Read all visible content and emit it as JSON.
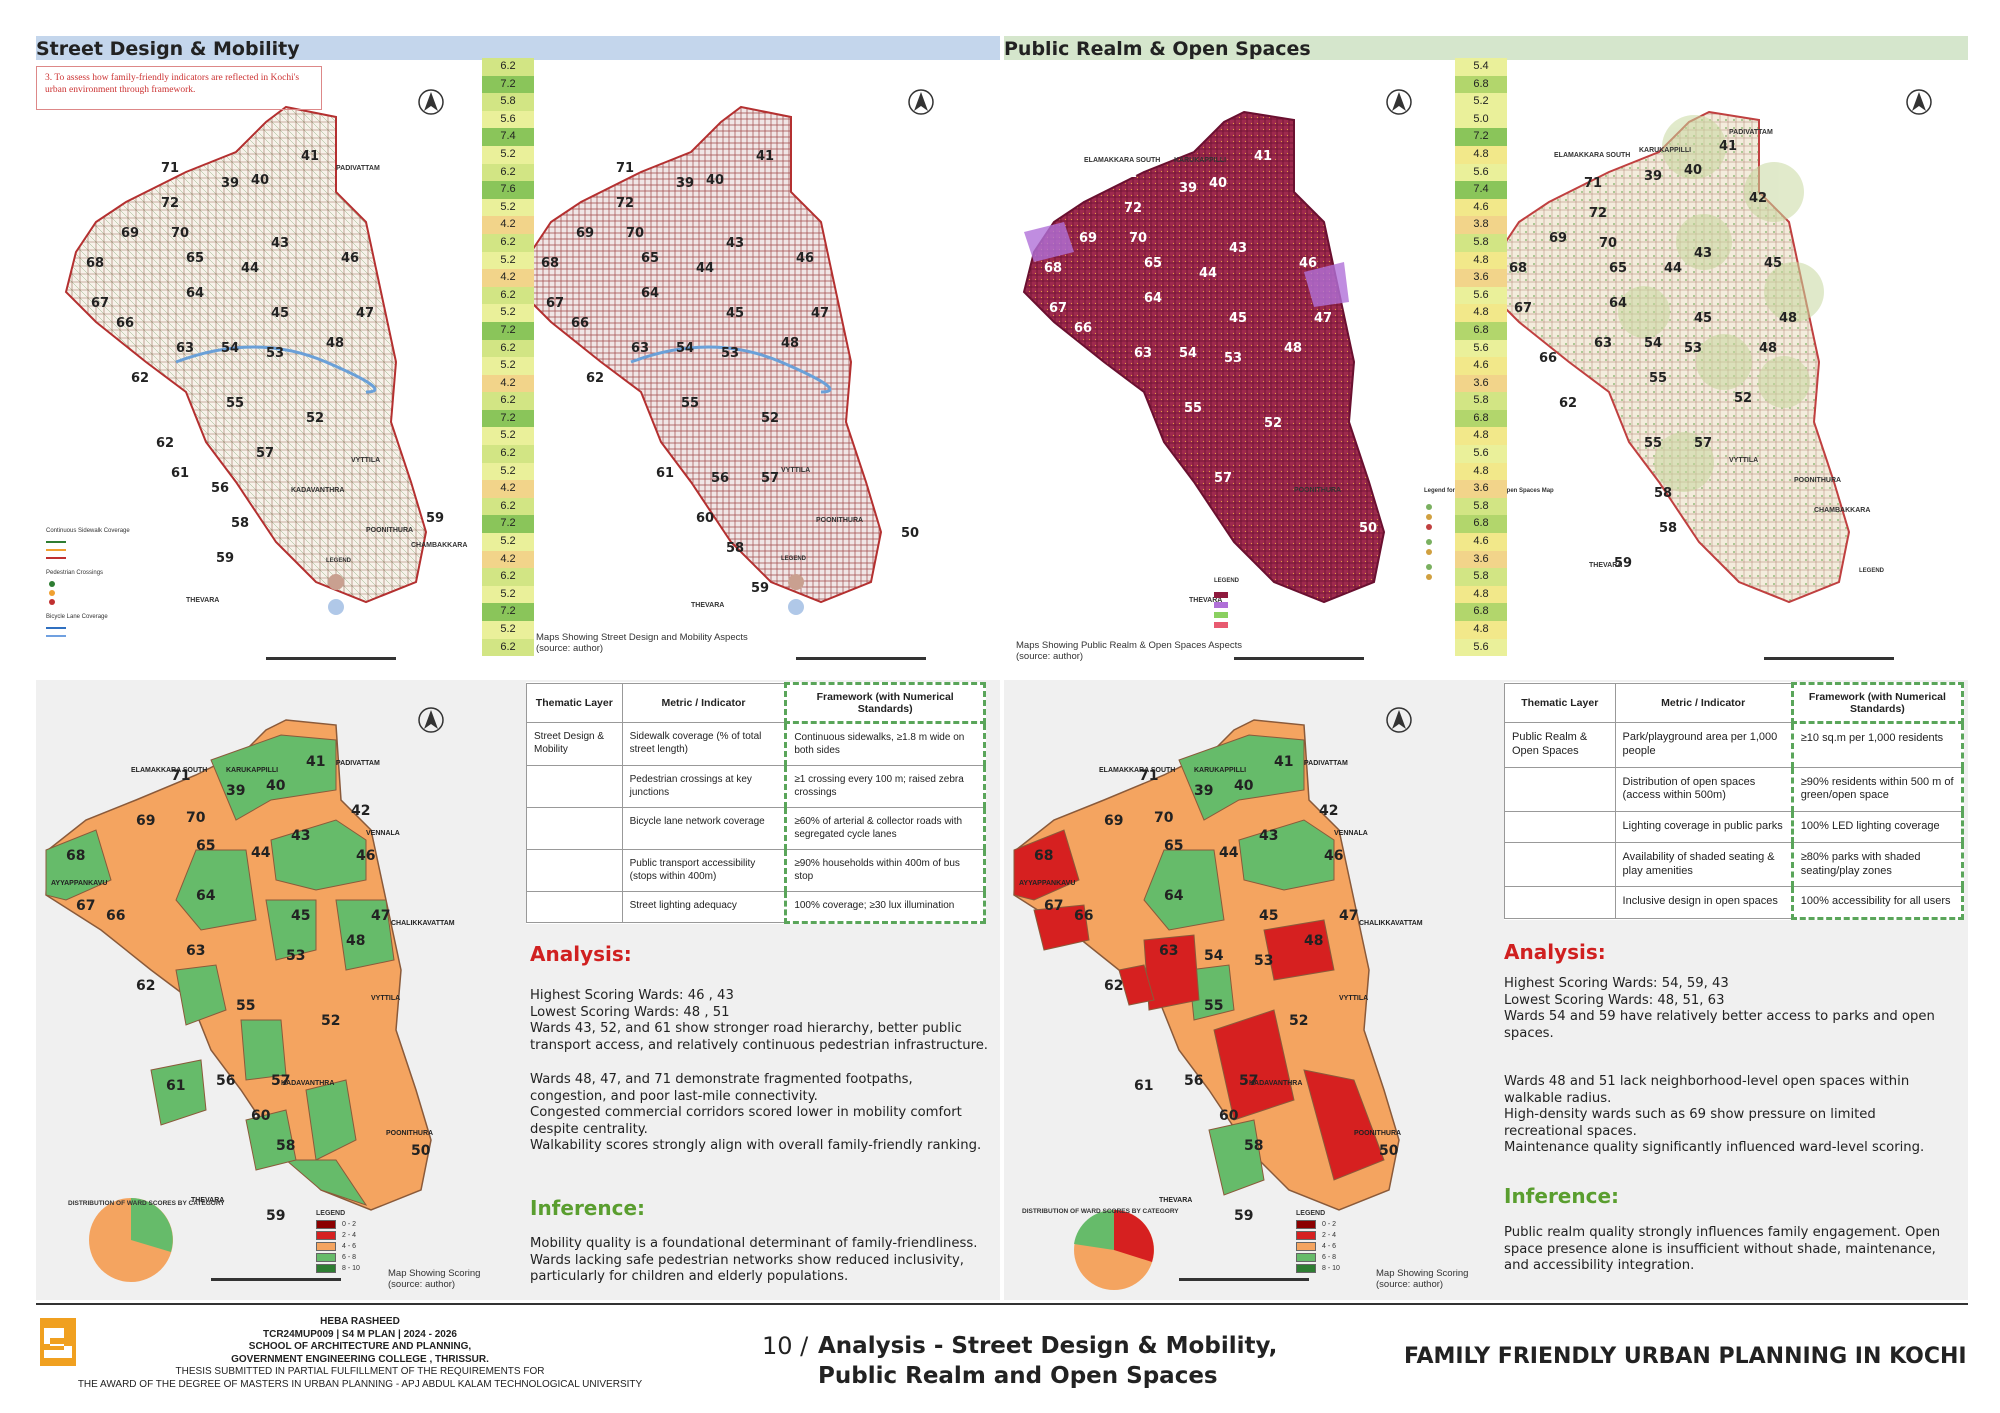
{
  "sections": {
    "street": "Street Design & Mobility",
    "public": "Public Realm & Open Spaces"
  },
  "objective": "3. To assess how family-friendly indicators are reflected in Kochi's urban environment  through framework.",
  "street_scores": [
    "6.2",
    "7.2",
    "5.8",
    "5.6",
    "7.4",
    "5.2",
    "6.2",
    "7.6",
    "5.2",
    "4.2",
    "6.2",
    "5.2",
    "4.2",
    "6.2",
    "5.2",
    "7.2",
    "6.2",
    "5.2",
    "4.2",
    "6.2",
    "7.2",
    "5.2",
    "6.2",
    "5.2",
    "4.2",
    "6.2",
    "7.2",
    "5.2",
    "4.2",
    "6.2",
    "5.2",
    "7.2",
    "5.2",
    "6.2"
  ],
  "public_scores": [
    "5.4",
    "6.8",
    "5.2",
    "5.0",
    "7.2",
    "4.8",
    "5.6",
    "7.4",
    "4.6",
    "3.8",
    "5.8",
    "4.8",
    "3.6",
    "5.6",
    "4.8",
    "6.8",
    "5.6",
    "4.6",
    "3.6",
    "5.8",
    "6.8",
    "4.8",
    "5.6",
    "4.8",
    "3.6",
    "5.8",
    "6.8",
    "4.6",
    "3.6",
    "5.8",
    "4.8",
    "6.8",
    "4.8",
    "5.6"
  ],
  "captions": {
    "street_maps": "Maps Showing Street Design and Mobility Aspects",
    "public_maps": "Maps Showing Public Realm & Open Spaces Aspects",
    "source": "(source: author)",
    "scoring": "Map Showing Scoring"
  },
  "ward_labels": [
    "41",
    "PADIVATTAM",
    "71",
    "39",
    "40",
    "72",
    "69",
    "70",
    "43",
    "65",
    "44",
    "46",
    "68",
    "67",
    "64",
    "45",
    "47",
    "66",
    "48",
    "63",
    "54",
    "53",
    "62",
    "55",
    "52",
    "VYTTILA",
    "61",
    "56",
    "57",
    "60",
    "58",
    "59",
    "50",
    "THEVARA",
    "POONITHURA",
    "ELAMAKKARA SOUTH",
    "KARUKAPPILLI",
    "AYYAPPANKAVU",
    "VENNALA",
    "CHALIKKAVATTAM",
    "POONITHURA",
    "KADAVANTHRA",
    "CHAMBAKKARA"
  ],
  "legend_title": "LEGEND",
  "score_legend": [
    {
      "range": "0 - 2",
      "color": "#8b0000"
    },
    {
      "range": "2 - 4",
      "color": "#d62020"
    },
    {
      "range": "4 - 6",
      "color": "#f4a460"
    },
    {
      "range": "6 - 8",
      "color": "#66bb6a"
    },
    {
      "range": "8 - 10",
      "color": "#2e7d32"
    }
  ],
  "pie_title": "DISTRIBUTION OF WARD SCORES BY CATEGORY",
  "street_table": {
    "headers": [
      "Thematic Layer",
      "Metric / Indicator",
      "Framework (with Numerical Standards)"
    ],
    "rows": [
      [
        "Street Design & Mobility",
        "Sidewalk coverage (% of total street length)",
        "Continuous sidewalks, ≥1.8 m wide on both sides"
      ],
      [
        "",
        "Pedestrian crossings at key junctions",
        "≥1 crossing every 100 m; raised zebra crossings"
      ],
      [
        "",
        "Bicycle lane network coverage",
        "≥60% of arterial & collector roads with segregated cycle lanes"
      ],
      [
        "",
        "Public transport accessibility (stops within 400m)",
        "≥90% households within 400m of bus stop"
      ],
      [
        "",
        "Street lighting adequacy",
        "100% coverage; ≥30 lux illumination"
      ]
    ]
  },
  "public_table": {
    "headers": [
      "Thematic Layer",
      "Metric / Indicator",
      "Framework (with Numerical Standards)"
    ],
    "rows": [
      [
        "Public Realm & Open Spaces",
        "Park/playground area per 1,000 people",
        "≥10 sq.m per 1,000 residents"
      ],
      [
        "",
        "Distribution of open spaces (access within 500m)",
        "≥90% residents within 500 m of green/open space"
      ],
      [
        "",
        "Lighting coverage in public parks",
        "100% LED lighting coverage"
      ],
      [
        "",
        "Availability of shaded seating & play amenities",
        "≥80% parks with shaded seating/play zones"
      ],
      [
        "",
        "Inclusive design in open spaces",
        "100% accessibility for all users"
      ]
    ]
  },
  "street_analysis": {
    "title": "Analysis:",
    "p1": [
      "Highest Scoring Wards: 46 , 43",
      "Lowest Scoring Wards: 48 , 51",
      "Wards 43, 52, and 61 show stronger road hierarchy, better public transport access, and relatively continuous pedestrian infrastructure."
    ],
    "p2": [
      "Wards 48, 47, and 71 demonstrate fragmented footpaths, congestion, and poor last-mile connectivity.",
      "Congested commercial corridors scored lower in mobility comfort despite centrality.",
      "Walkability scores strongly align with overall family-friendly ranking."
    ],
    "inference_title": "Inference:",
    "inference": "Mobility quality is a foundational determinant of family-friendliness. Wards lacking safe pedestrian networks show reduced inclusivity, particularly for children and elderly populations."
  },
  "public_analysis": {
    "title": "Analysis:",
    "p1": [
      "Highest Scoring Wards: 54, 59, 43",
      "Lowest Scoring Wards: 48, 51, 63",
      "Wards 54 and 59 have relatively better access to parks and open spaces."
    ],
    "p2": [
      "Wards 48 and 51 lack neighborhood-level open spaces within walkable radius.",
      "High-density wards such as 69 show pressure on limited recreational spaces.",
      "Maintenance quality significantly influenced ward-level scoring."
    ],
    "inference_title": "Inference:",
    "inference": "Public realm quality strongly influences family engagement. Open space presence alone is insufficient without shade, maintenance, and accessibility integration."
  },
  "footer": {
    "name": "HEBA RASHEED",
    "code": "TCR24MUP009 | S4 M PLAN | 2024 - 2026",
    "school": "SCHOOL OF ARCHITECTURE AND PLANNING,",
    "college": "GOVERNMENT ENGINEERING COLLEGE , THRISSUR.",
    "thesis1": "THESIS SUBMITTED IN PARTIAL FULFILLMENT OF THE REQUIREMENTS FOR",
    "thesis2": "THE AWARD OF THE DEGREE OF MASTERS IN URBAN PLANNING - APJ ABDUL KALAM TECHNOLOGICAL UNIVERSITY",
    "page": "10 /",
    "title1": "Analysis - Street Design & Mobility,",
    "title2": "Public Realm and Open Spaces",
    "project": "FAMILY FRIENDLY URBAN PLANNING IN KOCHI"
  },
  "colors": {
    "street_header": "#c4d6ec",
    "public_header": "#d5e6cc",
    "analysis": "#d02020",
    "inference": "#5a9e2f",
    "ward_orange": "#f4a460",
    "ward_green": "#66bb6a",
    "ward_red": "#d62020"
  }
}
